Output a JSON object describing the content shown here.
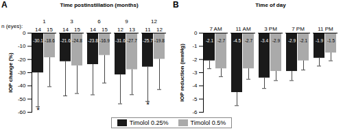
{
  "chart_data": [
    {
      "type": "bar",
      "panel": "A",
      "title": "Time postinstillation (months)",
      "categories": [
        1,
        3,
        6,
        9,
        12
      ],
      "n_label": "n (eyes):",
      "series": [
        {
          "name": "Timolol 0.25%",
          "color": "#1a1a1a",
          "values": [
            -30.1,
            -21.6,
            -23.8,
            -31.6,
            -25.7
          ],
          "errors": [
            25.7,
            26,
            23,
            22,
            26
          ],
          "n": [
            14,
            14,
            14,
            12,
            11
          ]
        },
        {
          "name": "Timolol 0.5%",
          "color": "#aaaaaa",
          "values": [
            -18.6,
            -24.8,
            -16.9,
            -27.7,
            -19.8
          ],
          "errors": [
            22,
            21,
            21,
            19,
            23
          ],
          "n": [
            15,
            15,
            15,
            13,
            12
          ]
        }
      ],
      "annotations": [
        {
          "category": 1,
          "series": "Timolol 0.25%",
          "text": "*"
        },
        {
          "category": 12,
          "series": "Timolol 0.25%",
          "text": "*"
        }
      ],
      "y_label": "IOP change (%)",
      "ylim": [
        -60,
        0
      ],
      "yticks": [
        0,
        -10,
        -20,
        -30,
        -40,
        -50,
        -60
      ],
      "data_labels": true,
      "grid": false,
      "legend": "bottom"
    },
    {
      "type": "bar",
      "panel": "B",
      "title": "Time of day",
      "categories": [
        "7 AM",
        "11 AM",
        "3 PM",
        "7 PM",
        "11 PM"
      ],
      "series": [
        {
          "name": "Timolol 0.25%",
          "color": "#1a1a1a",
          "values": [
            -2.1,
            -4.5,
            -3.4,
            -2.9,
            -1.9
          ],
          "errors": [
            0.6,
            1.0,
            0.8,
            0.7,
            0.6
          ]
        },
        {
          "name": "Timolol 0.5%",
          "color": "#aaaaaa",
          "values": [
            -2.7,
            -2.7,
            -2.9,
            -2.1,
            -1.5
          ],
          "errors": [
            0.6,
            0.8,
            0.7,
            0.7,
            0.6
          ]
        }
      ],
      "y_label": "IOP reduction (mmHg)",
      "ylim": [
        -6,
        0
      ],
      "yticks": [
        0,
        -1,
        -2,
        -3,
        -4,
        -5,
        -6
      ],
      "data_labels": true,
      "grid": false
    }
  ]
}
